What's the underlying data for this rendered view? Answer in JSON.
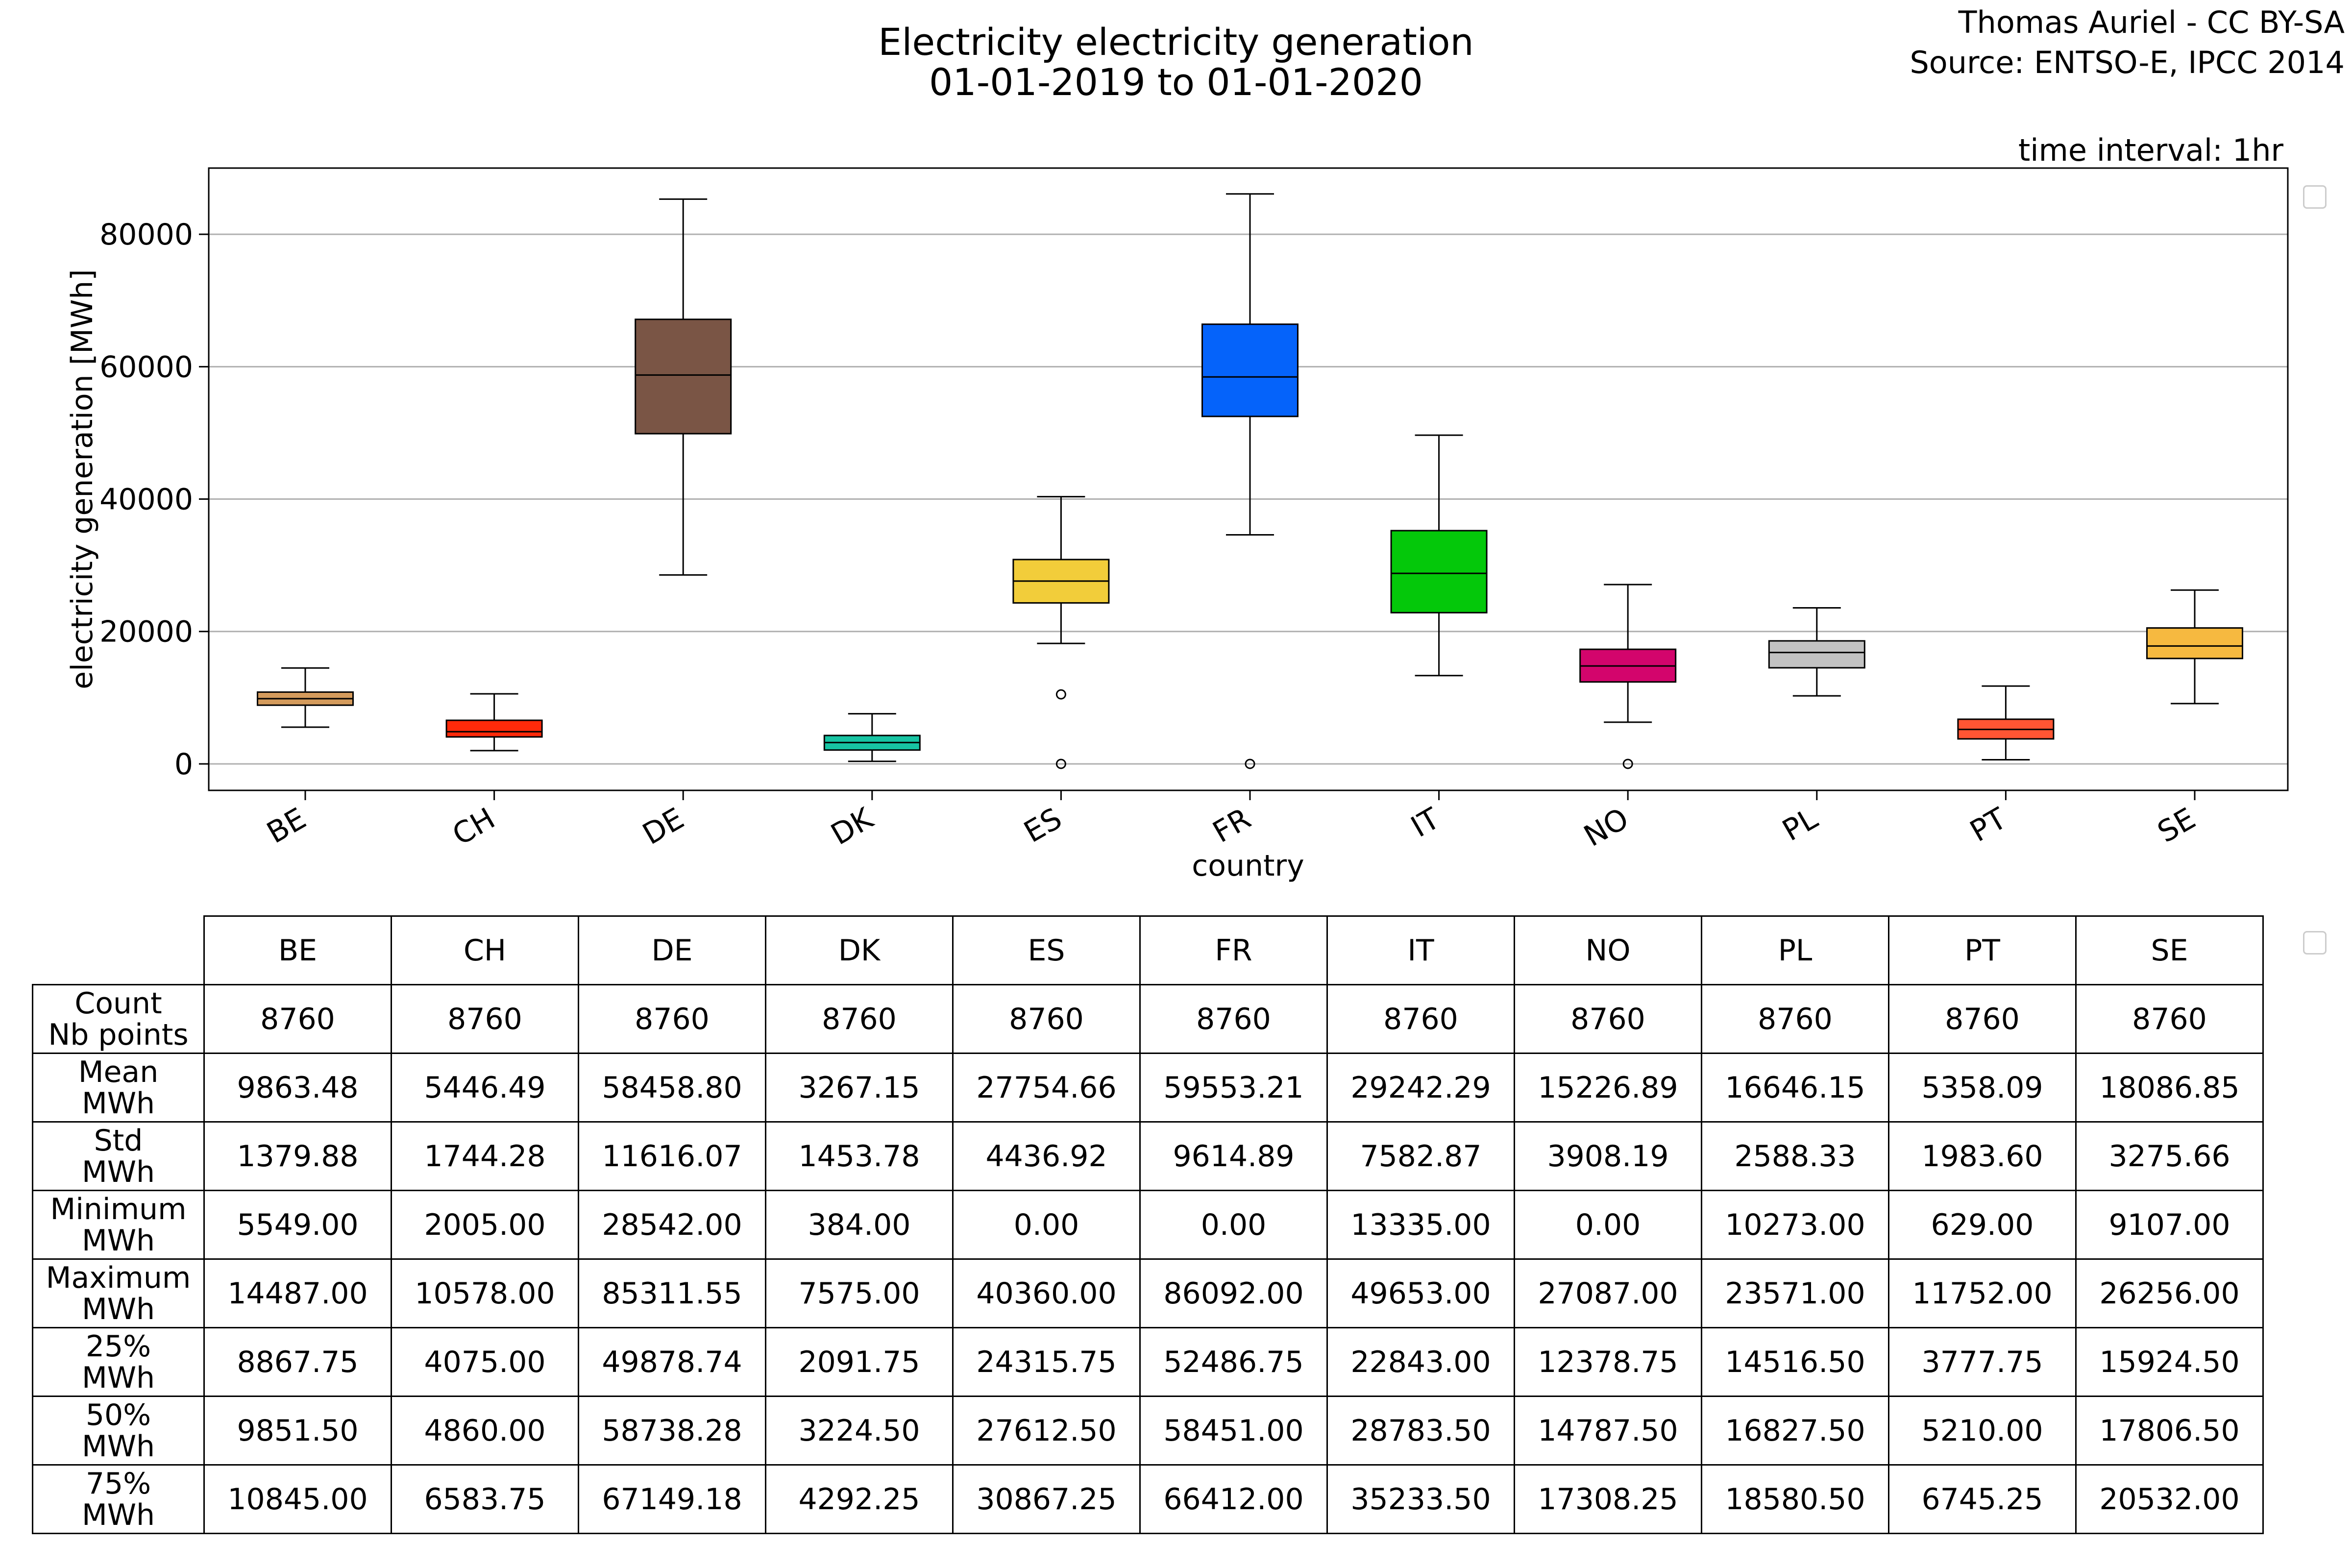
{
  "header": {
    "title": "Electricity electricity generation\n01-01-2019 to 01-01-2020",
    "credit": "Thomas Auriel - CC BY-SA\nSource: ENTSO-E, IPCC 2014",
    "interval": "time interval: 1hr"
  },
  "chart_data": {
    "type": "box",
    "title": "Electricity electricity generation 01-01-2019 to 01-01-2020",
    "xlabel": "country",
    "ylabel": "electricity generation [MWh]",
    "ylim": [
      -4000,
      90000
    ],
    "yticks": [
      0,
      20000,
      40000,
      60000,
      80000
    ],
    "grid": "y",
    "categories": [
      "BE",
      "CH",
      "DE",
      "DK",
      "ES",
      "FR",
      "IT",
      "NO",
      "PL",
      "PT",
      "SE"
    ],
    "colors": [
      "#d49b5c",
      "#ff2a0a",
      "#7a5545",
      "#17c4a3",
      "#f2cd3a",
      "#0563fa",
      "#04c80a",
      "#d3056c",
      "#c2c2c2",
      "#ff5533",
      "#f6b940"
    ],
    "boxes": [
      {
        "min": 5549.0,
        "q1": 8867.75,
        "median": 9851.5,
        "q3": 10845.0,
        "max": 14487.0,
        "outliers": []
      },
      {
        "min": 2005.0,
        "q1": 4075.0,
        "median": 4860.0,
        "q3": 6583.75,
        "max": 10578.0,
        "outliers": []
      },
      {
        "min": 28542.0,
        "q1": 49878.74,
        "median": 58738.28,
        "q3": 67149.18,
        "max": 85311.55,
        "outliers": []
      },
      {
        "min": 384.0,
        "q1": 2091.75,
        "median": 3224.5,
        "q3": 4292.25,
        "max": 7575.0,
        "outliers": []
      },
      {
        "min": 18200.0,
        "q1": 24315.75,
        "median": 27612.5,
        "q3": 30867.25,
        "max": 40360.0,
        "outliers": [
          10500,
          0
        ]
      },
      {
        "min": 34600.0,
        "q1": 52486.75,
        "median": 58451.0,
        "q3": 66412.0,
        "max": 86092.0,
        "outliers": [
          0
        ]
      },
      {
        "min": 13335.0,
        "q1": 22843.0,
        "median": 28783.5,
        "q3": 35233.5,
        "max": 49653.0,
        "outliers": []
      },
      {
        "min": 6300.0,
        "q1": 12378.75,
        "median": 14787.5,
        "q3": 17308.25,
        "max": 27087.0,
        "outliers": [
          0
        ]
      },
      {
        "min": 10273.0,
        "q1": 14516.5,
        "median": 16827.5,
        "q3": 18580.5,
        "max": 23571.0,
        "outliers": []
      },
      {
        "min": 629.0,
        "q1": 3777.75,
        "median": 5210.0,
        "q3": 6745.25,
        "max": 11752.0,
        "outliers": []
      },
      {
        "min": 9107.0,
        "q1": 15924.5,
        "median": 17806.5,
        "q3": 20532.0,
        "max": 26256.0,
        "outliers": []
      }
    ]
  },
  "table": {
    "columns": [
      "BE",
      "CH",
      "DE",
      "DK",
      "ES",
      "FR",
      "IT",
      "NO",
      "PL",
      "PT",
      "SE"
    ],
    "rows": [
      {
        "label": "Count\nNb points",
        "values": [
          "8760",
          "8760",
          "8760",
          "8760",
          "8760",
          "8760",
          "8760",
          "8760",
          "8760",
          "8760",
          "8760"
        ]
      },
      {
        "label": "Mean\nMWh",
        "values": [
          "9863.48",
          "5446.49",
          "58458.80",
          "3267.15",
          "27754.66",
          "59553.21",
          "29242.29",
          "15226.89",
          "16646.15",
          "5358.09",
          "18086.85"
        ]
      },
      {
        "label": "Std\nMWh",
        "values": [
          "1379.88",
          "1744.28",
          "11616.07",
          "1453.78",
          "4436.92",
          "9614.89",
          "7582.87",
          "3908.19",
          "2588.33",
          "1983.60",
          "3275.66"
        ]
      },
      {
        "label": "Minimum\nMWh",
        "values": [
          "5549.00",
          "2005.00",
          "28542.00",
          "384.00",
          "0.00",
          "0.00",
          "13335.00",
          "0.00",
          "10273.00",
          "629.00",
          "9107.00"
        ]
      },
      {
        "label": "Maximum\nMWh",
        "values": [
          "14487.00",
          "10578.00",
          "85311.55",
          "7575.00",
          "40360.00",
          "86092.00",
          "49653.00",
          "27087.00",
          "23571.00",
          "11752.00",
          "26256.00"
        ]
      },
      {
        "label": "25%\nMWh",
        "values": [
          "8867.75",
          "4075.00",
          "49878.74",
          "2091.75",
          "24315.75",
          "52486.75",
          "22843.00",
          "12378.75",
          "14516.50",
          "3777.75",
          "15924.50"
        ]
      },
      {
        "label": "50%\nMWh",
        "values": [
          "9851.50",
          "4860.00",
          "58738.28",
          "3224.50",
          "27612.50",
          "58451.00",
          "28783.50",
          "14787.50",
          "16827.50",
          "5210.00",
          "17806.50"
        ]
      },
      {
        "label": "75%\nMWh",
        "values": [
          "10845.00",
          "6583.75",
          "67149.18",
          "4292.25",
          "30867.25",
          "66412.00",
          "35233.50",
          "17308.25",
          "18580.50",
          "6745.25",
          "20532.00"
        ]
      }
    ]
  }
}
